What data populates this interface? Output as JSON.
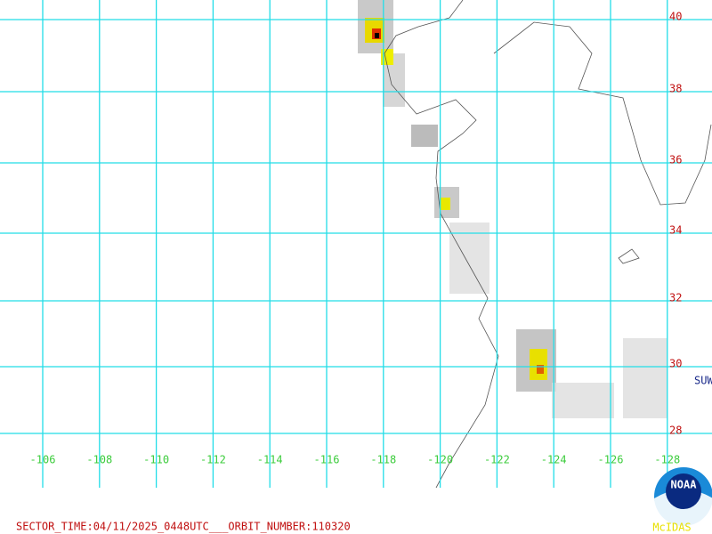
{
  "map": {
    "lat_labels": [
      40,
      38,
      36,
      34,
      32,
      30,
      28
    ],
    "lon_labels": [
      -106,
      -108,
      -110,
      -112,
      -114,
      -116,
      -118,
      -120,
      -122,
      -124,
      -126,
      -128
    ],
    "station": "SUW",
    "footer": "SECTOR_TIME:04/11/2025_0448UTC___ORBIT_NUMBER:110320",
    "logo": {
      "text": "NOAA",
      "caption": "McIDAS"
    }
  }
}
